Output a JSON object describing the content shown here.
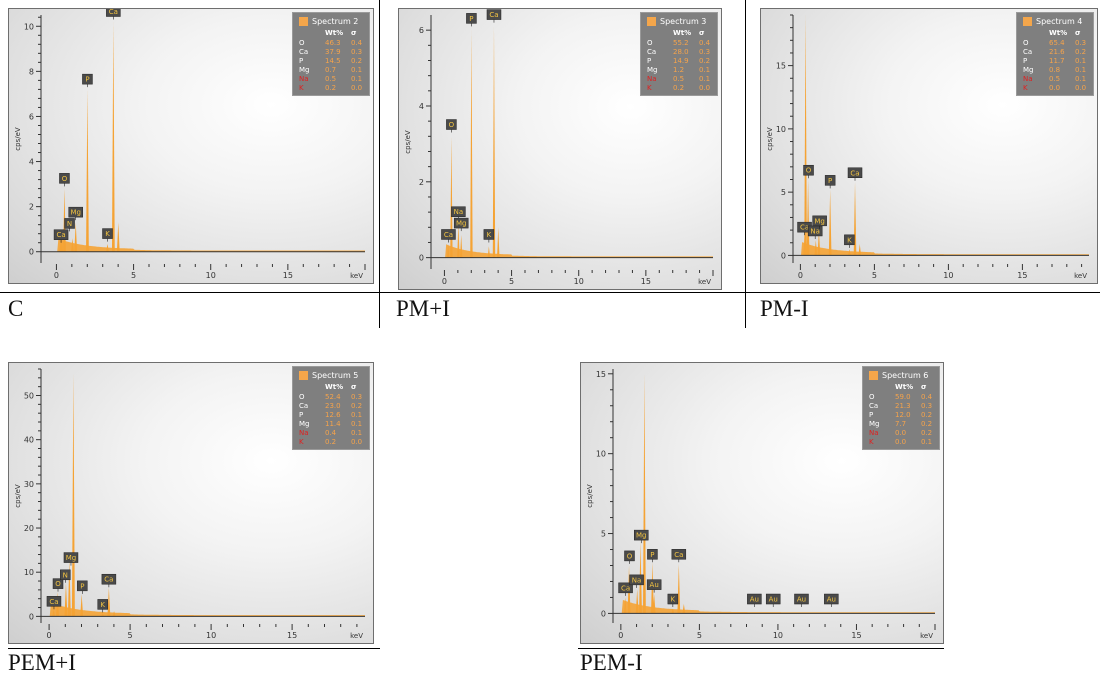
{
  "colors": {
    "spectrum": "#f5a334",
    "label_bg": "#4a4a4a",
    "label_text": "#f4c542",
    "red_element": "#e02020",
    "white_element": "#ffffff"
  },
  "chart_data": [
    {
      "type": "area",
      "caption": "C",
      "title": "Spectrum 2",
      "xlabel": "keV",
      "ylabel": "cps/eV",
      "xlim": [
        -1,
        20
      ],
      "ylim": [
        -0.5,
        10.5
      ],
      "xticks": [
        0,
        5,
        10,
        15
      ],
      "yticks": [
        0,
        2,
        4,
        6,
        8,
        10
      ],
      "legend_position": "top-right",
      "legend_header": [
        "Wt%",
        "σ"
      ],
      "legend": [
        {
          "el": "O",
          "wt": "46.3",
          "sigma": "0.4",
          "color": "white"
        },
        {
          "el": "Ca",
          "wt": "37.9",
          "sigma": "0.3",
          "color": "white"
        },
        {
          "el": "P",
          "wt": "14.5",
          "sigma": "0.2",
          "color": "white"
        },
        {
          "el": "Mg",
          "wt": "0.7",
          "sigma": "0.1",
          "color": "white"
        },
        {
          "el": "Na",
          "wt": "0.5",
          "sigma": "0.1",
          "color": "red"
        },
        {
          "el": "K",
          "wt": "0.2",
          "sigma": "0.0",
          "color": "red"
        }
      ],
      "peaks": [
        {
          "x": 0.28,
          "y": 0.5
        },
        {
          "x": 0.34,
          "y": 0.9
        },
        {
          "x": 0.52,
          "y": 2.8
        },
        {
          "x": 1.04,
          "y": 0.6
        },
        {
          "x": 1.25,
          "y": 1.3
        },
        {
          "x": 2.01,
          "y": 7.2
        },
        {
          "x": 3.31,
          "y": 0.35
        },
        {
          "x": 3.69,
          "y": 10.2
        },
        {
          "x": 4.01,
          "y": 1.3
        }
      ],
      "labels": [
        {
          "text": "Ca",
          "x": 0.3,
          "y": 0.4
        },
        {
          "text": "N",
          "x": 0.85,
          "y": 0.9
        },
        {
          "text": "O",
          "x": 0.52,
          "y": 2.9
        },
        {
          "text": "Mg",
          "x": 1.25,
          "y": 1.4
        },
        {
          "text": "P",
          "x": 2.01,
          "y": 7.3
        },
        {
          "text": "K",
          "x": 3.31,
          "y": 0.45
        },
        {
          "text": "Ca",
          "x": 3.69,
          "y": 10.3
        }
      ]
    },
    {
      "type": "area",
      "caption": "PM+I",
      "title": "Spectrum 3",
      "xlabel": "keV",
      "ylabel": "cps/eV",
      "xlim": [
        -1,
        20
      ],
      "ylim": [
        -0.3,
        6.4
      ],
      "xticks": [
        0,
        5,
        10,
        15
      ],
      "yticks": [
        0,
        2,
        4,
        6
      ],
      "legend_position": "top-right",
      "legend_header": [
        "Wt%",
        "σ"
      ],
      "legend": [
        {
          "el": "O",
          "wt": "55.2",
          "sigma": "0.4",
          "color": "white"
        },
        {
          "el": "Ca",
          "wt": "28.0",
          "sigma": "0.3",
          "color": "white"
        },
        {
          "el": "P",
          "wt": "14.9",
          "sigma": "0.2",
          "color": "white"
        },
        {
          "el": "Mg",
          "wt": "1.2",
          "sigma": "0.1",
          "color": "white"
        },
        {
          "el": "Na",
          "wt": "0.5",
          "sigma": "0.1",
          "color": "red"
        },
        {
          "el": "K",
          "wt": "0.2",
          "sigma": "0.0",
          "color": "red"
        }
      ],
      "peaks": [
        {
          "x": 0.28,
          "y": 0.35
        },
        {
          "x": 0.52,
          "y": 3.2
        },
        {
          "x": 1.04,
          "y": 0.9
        },
        {
          "x": 1.25,
          "y": 0.6
        },
        {
          "x": 2.01,
          "y": 6.0
        },
        {
          "x": 3.31,
          "y": 0.3
        },
        {
          "x": 3.69,
          "y": 6.1
        },
        {
          "x": 4.01,
          "y": 0.8
        }
      ],
      "labels": [
        {
          "text": "Ca",
          "x": 0.3,
          "y": 0.4
        },
        {
          "text": "Na",
          "x": 1.04,
          "y": 1.0
        },
        {
          "text": "Mg",
          "x": 1.25,
          "y": 0.7
        },
        {
          "text": "O",
          "x": 0.52,
          "y": 3.3
        },
        {
          "text": "P",
          "x": 2.01,
          "y": 6.1
        },
        {
          "text": "K",
          "x": 3.31,
          "y": 0.4
        },
        {
          "text": "Ca",
          "x": 3.69,
          "y": 6.2
        }
      ]
    },
    {
      "type": "area",
      "caption": "PM-I",
      "title": "Spectrum 4",
      "xlabel": "keV",
      "ylabel": "cps/eV",
      "xlim": [
        -0.5,
        19.5
      ],
      "ylim": [
        -0.6,
        19
      ],
      "xticks": [
        0,
        5,
        10,
        15
      ],
      "yticks": [
        0,
        5,
        10,
        15
      ],
      "legend_position": "top-right",
      "legend_header": [
        "Wt%",
        "σ"
      ],
      "legend": [
        {
          "el": "O",
          "wt": "65.4",
          "sigma": "0.3",
          "color": "white"
        },
        {
          "el": "Ca",
          "wt": "21.6",
          "sigma": "0.2",
          "color": "white"
        },
        {
          "el": "P",
          "wt": "11.7",
          "sigma": "0.1",
          "color": "white"
        },
        {
          "el": "Mg",
          "wt": "0.8",
          "sigma": "0.1",
          "color": "white"
        },
        {
          "el": "Na",
          "wt": "0.5",
          "sigma": "0.1",
          "color": "red"
        },
        {
          "el": "K",
          "wt": "0.0",
          "sigma": "0.0",
          "color": "red"
        }
      ],
      "peaks": [
        {
          "x": 0.28,
          "y": 1.5
        },
        {
          "x": 0.35,
          "y": 19
        },
        {
          "x": 0.52,
          "y": 6.0
        },
        {
          "x": 1.04,
          "y": 1.2
        },
        {
          "x": 1.25,
          "y": 2.0
        },
        {
          "x": 2.01,
          "y": 5.2
        },
        {
          "x": 3.31,
          "y": 0.5
        },
        {
          "x": 3.69,
          "y": 5.8
        },
        {
          "x": 4.01,
          "y": 0.9
        }
      ],
      "labels": [
        {
          "text": "Ca",
          "x": 0.28,
          "y": 1.6
        },
        {
          "text": "O",
          "x": 0.55,
          "y": 6.1
        },
        {
          "text": "Na",
          "x": 1.0,
          "y": 1.3
        },
        {
          "text": "Mg",
          "x": 1.3,
          "y": 2.1
        },
        {
          "text": "P",
          "x": 2.01,
          "y": 5.3
        },
        {
          "text": "K",
          "x": 3.31,
          "y": 0.6
        },
        {
          "text": "Ca",
          "x": 3.69,
          "y": 5.9
        }
      ]
    },
    {
      "type": "area",
      "caption": "PEM+I",
      "title": "Spectrum 5",
      "xlabel": "keV",
      "ylabel": "cps/eV",
      "xlim": [
        -0.5,
        19.5
      ],
      "ylim": [
        -1.5,
        56
      ],
      "xticks": [
        0,
        5,
        10,
        15
      ],
      "yticks": [
        0,
        10,
        20,
        30,
        40,
        50
      ],
      "legend_position": "top-right",
      "legend_header": [
        "Wt%",
        "σ"
      ],
      "legend": [
        {
          "el": "O",
          "wt": "52.4",
          "sigma": "0.3",
          "color": "white"
        },
        {
          "el": "Ca",
          "wt": "23.0",
          "sigma": "0.2",
          "color": "white"
        },
        {
          "el": "P",
          "wt": "12.6",
          "sigma": "0.1",
          "color": "white"
        },
        {
          "el": "Mg",
          "wt": "11.4",
          "sigma": "0.1",
          "color": "white"
        },
        {
          "el": "Na",
          "wt": "0.4",
          "sigma": "0.1",
          "color": "red"
        },
        {
          "el": "K",
          "wt": "0.2",
          "sigma": "0.0",
          "color": "red"
        }
      ],
      "peaks": [
        {
          "x": 0.28,
          "y": 1.5
        },
        {
          "x": 0.52,
          "y": 5.5
        },
        {
          "x": 1.04,
          "y": 7.5
        },
        {
          "x": 1.25,
          "y": 13.0
        },
        {
          "x": 1.5,
          "y": 55.0
        },
        {
          "x": 2.01,
          "y": 5.0
        },
        {
          "x": 3.31,
          "y": 0.8
        },
        {
          "x": 3.69,
          "y": 6.5
        },
        {
          "x": 4.01,
          "y": 1.2
        }
      ],
      "labels": [
        {
          "text": "Ca",
          "x": 0.3,
          "y": 1.6
        },
        {
          "text": "O",
          "x": 0.55,
          "y": 5.6
        },
        {
          "text": "N",
          "x": 1.0,
          "y": 7.6
        },
        {
          "text": "Mg",
          "x": 1.35,
          "y": 11.5
        },
        {
          "text": "P",
          "x": 2.05,
          "y": 5.1
        },
        {
          "text": "K",
          "x": 3.31,
          "y": 0.9
        },
        {
          "text": "Ca",
          "x": 3.69,
          "y": 6.6
        }
      ]
    },
    {
      "type": "area",
      "caption": "PEM-I",
      "title": "Spectrum 6",
      "xlabel": "keV",
      "ylabel": "cps/eV",
      "xlim": [
        -0.5,
        20
      ],
      "ylim": [
        -0.6,
        15.3
      ],
      "xticks": [
        0,
        5,
        10,
        15
      ],
      "yticks": [
        0,
        5,
        10,
        15
      ],
      "legend_position": "top-right",
      "legend_header": [
        "Wt%",
        "σ"
      ],
      "legend": [
        {
          "el": "O",
          "wt": "59.0",
          "sigma": "0.4",
          "color": "white"
        },
        {
          "el": "Ca",
          "wt": "21.3",
          "sigma": "0.3",
          "color": "white"
        },
        {
          "el": "P",
          "wt": "12.0",
          "sigma": "0.2",
          "color": "white"
        },
        {
          "el": "Mg",
          "wt": "7.7",
          "sigma": "0.2",
          "color": "white"
        },
        {
          "el": "Na",
          "wt": "0.0",
          "sigma": "0.2",
          "color": "red"
        },
        {
          "el": "K",
          "wt": "0.0",
          "sigma": "0.1",
          "color": "red"
        }
      ],
      "peaks": [
        {
          "x": 0.28,
          "y": 1.0
        },
        {
          "x": 0.52,
          "y": 3.0
        },
        {
          "x": 1.04,
          "y": 1.5
        },
        {
          "x": 1.25,
          "y": 4.5
        },
        {
          "x": 1.5,
          "y": 15.0
        },
        {
          "x": 2.01,
          "y": 3.2
        },
        {
          "x": 2.12,
          "y": 1.2
        },
        {
          "x": 3.31,
          "y": 0.3
        },
        {
          "x": 3.69,
          "y": 3.1
        },
        {
          "x": 4.01,
          "y": 0.6
        }
      ],
      "labels": [
        {
          "text": "Ca",
          "x": 0.3,
          "y": 1.1
        },
        {
          "text": "O",
          "x": 0.55,
          "y": 3.1
        },
        {
          "text": "Na",
          "x": 1.0,
          "y": 1.6
        },
        {
          "text": "Mg",
          "x": 1.3,
          "y": 4.4
        },
        {
          "text": "P",
          "x": 2.01,
          "y": 3.2
        },
        {
          "text": "Au",
          "x": 2.12,
          "y": 1.3
        },
        {
          "text": "K",
          "x": 3.31,
          "y": 0.4
        },
        {
          "text": "Ca",
          "x": 3.69,
          "y": 3.2
        },
        {
          "text": "Au",
          "x": 8.5,
          "y": 0.4
        },
        {
          "text": "Au",
          "x": 9.7,
          "y": 0.4
        },
        {
          "text": "Au",
          "x": 11.5,
          "y": 0.4
        },
        {
          "text": "Au",
          "x": 13.4,
          "y": 0.4
        }
      ]
    }
  ]
}
